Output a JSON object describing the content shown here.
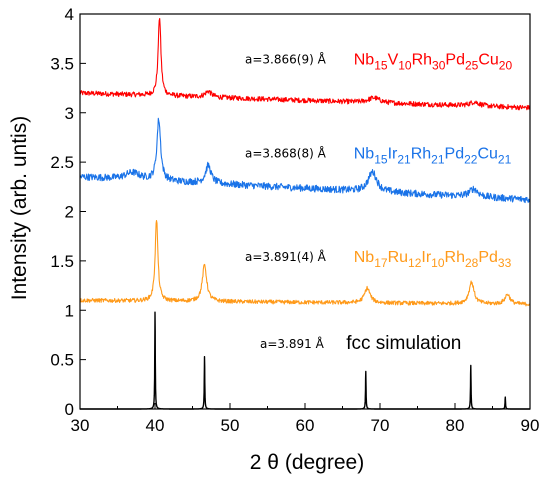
{
  "chart_data": {
    "type": "line",
    "title": "",
    "xlabel": "2 θ (degree)",
    "ylabel": "Intensity (arb. untis)",
    "xlim": [
      30,
      90
    ],
    "ylim": [
      0,
      4
    ],
    "xticks": [
      "30",
      "40",
      "50",
      "60",
      "70",
      "80",
      "90"
    ],
    "yticks": [
      "0",
      "0.5",
      "1",
      "1.5",
      "2",
      "2.5",
      "3",
      "3.5",
      "4"
    ],
    "grid": false,
    "series": [
      {
        "name": "Nb15V10Rh30Pd25Cu20",
        "color": "#ff0000",
        "baseline": 3.2,
        "end_level": 3.05,
        "noise": 0.025,
        "peaks": [
          [
            40.6,
            0.8,
            0.22
          ],
          [
            47.1,
            0.06,
            0.5
          ],
          [
            69.2,
            0.05,
            0.9
          ],
          [
            82.6,
            0.04,
            0.8
          ]
        ]
      },
      {
        "name": "Nb15Ir21Rh21Pd22Cu21",
        "color": "#1a73e8",
        "baseline": 2.35,
        "end_level": 2.12,
        "noise": 0.035,
        "peaks": [
          [
            37.0,
            0.07,
            1.2
          ],
          [
            40.5,
            0.62,
            0.3
          ],
          [
            47.1,
            0.18,
            0.45
          ],
          [
            69.0,
            0.2,
            0.7
          ],
          [
            82.5,
            0.08,
            0.7
          ]
        ]
      },
      {
        "name": "Nb17Ru12Ir10Rh28Pd33",
        "color": "#ff9a1a",
        "baseline": 1.1,
        "end_level": 1.06,
        "noise": 0.02,
        "peaks": [
          [
            40.2,
            0.83,
            0.22
          ],
          [
            46.6,
            0.37,
            0.35
          ],
          [
            68.3,
            0.15,
            0.45
          ],
          [
            82.2,
            0.22,
            0.4
          ],
          [
            87.0,
            0.1,
            0.4
          ]
        ]
      },
      {
        "name": "fcc simulation",
        "color": "#000000",
        "baseline": 0.0,
        "end_level": 0.0,
        "noise": 0.0,
        "peaks": [
          [
            40.0,
            0.98,
            0.1
          ],
          [
            46.6,
            0.53,
            0.1
          ],
          [
            68.1,
            0.38,
            0.1
          ],
          [
            82.1,
            0.44,
            0.1
          ],
          [
            86.7,
            0.12,
            0.1
          ]
        ]
      }
    ],
    "annotations": [
      {
        "lattice": "a=3.866(9) Å",
        "lattice_x": 52,
        "y": 3.55,
        "formula": [
          [
            "Nb",
            "15"
          ],
          [
            "V",
            "10"
          ],
          [
            "Rh",
            "30"
          ],
          [
            "Pd",
            "25"
          ],
          [
            "Cu",
            "20"
          ]
        ],
        "formula_x": 66.5,
        "color": "#ff0000"
      },
      {
        "lattice": "a=3.868(8) Å",
        "lattice_x": 52,
        "y": 2.6,
        "formula": [
          [
            "Nb",
            "15"
          ],
          [
            "Ir",
            "21"
          ],
          [
            "Rh",
            "21"
          ],
          [
            "Pd",
            "22"
          ],
          [
            "Cu",
            "21"
          ]
        ],
        "formula_x": 66.5,
        "color": "#1a73e8"
      },
      {
        "lattice": "a=3.891(4) Å",
        "lattice_x": 52,
        "y": 1.55,
        "formula": [
          [
            "Nb",
            "17"
          ],
          [
            "Ru",
            "12"
          ],
          [
            "Ir",
            "10"
          ],
          [
            "Rh",
            "28"
          ],
          [
            "Pd",
            "33"
          ]
        ],
        "formula_x": 66.5,
        "color": "#ff9a1a"
      },
      {
        "lattice": "a=3.891 Å",
        "lattice_x": 54,
        "y": 0.67,
        "formula": [],
        "formula_x": 0,
        "text": "fcc simulation",
        "text_x": 65.5,
        "color": "#000000"
      }
    ]
  }
}
